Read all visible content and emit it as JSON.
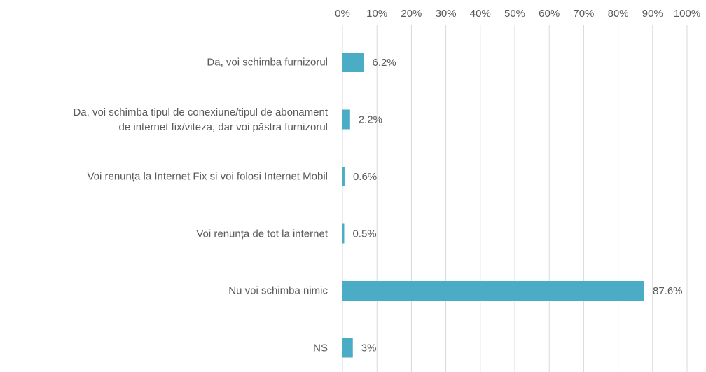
{
  "chart_data": {
    "type": "bar",
    "orientation": "horizontal",
    "categories": [
      "Da, voi schimba furnizorul",
      "Da, voi schimba tipul de conexiune/tipul de abonament\nde internet fix/viteza, dar voi păstra furnizorul",
      "Voi renunța la  Internet Fix si voi folosi Internet Mobil",
      "Voi renunța de tot la internet",
      "Nu voi schimba nimic",
      "NS"
    ],
    "values": [
      6.2,
      2.2,
      0.6,
      0.5,
      87.6,
      3
    ],
    "value_labels": [
      "6.2%",
      "2.2%",
      "0.6%",
      "0.5%",
      "87.6%",
      "3%"
    ],
    "color": "#4bacc6",
    "xlim": [
      0,
      100
    ],
    "xticks": [
      {
        "value": 0,
        "label": "0%"
      },
      {
        "value": 10,
        "label": "10%"
      },
      {
        "value": 20,
        "label": "20%"
      },
      {
        "value": 30,
        "label": "30%"
      },
      {
        "value": 40,
        "label": "40%"
      },
      {
        "value": 50,
        "label": "50%"
      },
      {
        "value": 60,
        "label": "60%"
      },
      {
        "value": 70,
        "label": "70%"
      },
      {
        "value": 80,
        "label": "80%"
      },
      {
        "value": 90,
        "label": "90%"
      },
      {
        "value": 100,
        "label": "100%"
      }
    ],
    "grid": true
  }
}
